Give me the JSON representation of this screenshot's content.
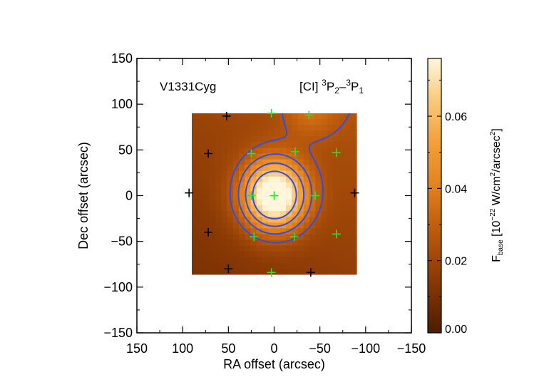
{
  "chart_data": {
    "type": "heatmap",
    "object_label": "V1331Cyg",
    "line_label": {
      "prefix": "[CI] ",
      "upper_sup": "3",
      "upper_base": "P",
      "upper_sub": "2",
      "dash": "–",
      "lower_sup": "3",
      "lower_base": "P",
      "lower_sub": "1"
    },
    "xlabel": "RA offset (arcsec)",
    "ylabel": "Dec offset (arcsec)",
    "xlim": [
      150,
      -150
    ],
    "ylim": [
      -150,
      150
    ],
    "x_ticks": [
      150,
      100,
      50,
      0,
      -50,
      -100,
      -150
    ],
    "x_tick_labels": [
      "150",
      "100",
      "50",
      "0",
      "−50",
      "−100",
      "−150"
    ],
    "y_ticks": [
      150,
      100,
      50,
      0,
      -50,
      -100,
      -150
    ],
    "y_tick_labels": [
      "150",
      "100",
      "50",
      "0",
      "−50",
      "−100",
      "−150"
    ],
    "map_extent": {
      "x": [
        90,
        -90
      ],
      "y": [
        -86,
        90
      ]
    },
    "grid": false,
    "colorbar": {
      "label_main": "F",
      "label_sub": "base",
      "label_rest_1": " [10",
      "label_exp": "−22",
      "label_rest_2": " W/cm",
      "label_sq1": "2",
      "label_rest_3": "/arcsec",
      "label_sq2": "2",
      "label_rest_4": "]",
      "range": [
        0,
        0.076
      ],
      "ticks": [
        0.0,
        0.02,
        0.04,
        0.06
      ],
      "tick_labels": [
        "0.00",
        "0.02",
        "0.04",
        "0.06"
      ]
    },
    "emission": {
      "background": 0.018,
      "peak_offset": [
        0,
        0
      ],
      "peak_value": 0.072,
      "peak_sigma_arcsec": 24,
      "ne_lobe_offset": [
        -40,
        92
      ],
      "ne_lobe_value": 0.012,
      "ne_lobe_sigma_arcsec": 20,
      "contour_levels": [
        0.026,
        0.036,
        0.048,
        0.062
      ]
    },
    "positions_on_source": [
      [
        0,
        0
      ],
      [
        -45,
        0
      ],
      [
        25,
        0
      ],
      [
        22,
        -45
      ],
      [
        -22,
        -45
      ],
      [
        -68,
        -42
      ],
      [
        -68,
        47
      ],
      [
        25,
        46
      ],
      [
        -23,
        48
      ],
      [
        3,
        90
      ],
      [
        -38,
        88
      ],
      [
        3,
        -84
      ]
    ],
    "positions_off_source": [
      [
        93,
        3
      ],
      [
        -88,
        3
      ],
      [
        72,
        46
      ],
      [
        72,
        -40
      ],
      [
        50,
        -80
      ],
      [
        -40,
        -84
      ],
      [
        52,
        87
      ]
    ],
    "colors": {
      "marker_on": "#33dd33",
      "marker_off": "#000000",
      "contour": "#2e4fe0",
      "axes": "#000000"
    }
  }
}
